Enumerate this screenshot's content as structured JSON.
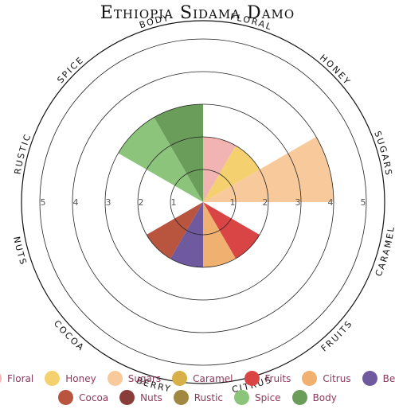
{
  "chart_data": {
    "type": "polar-area",
    "title": "Ethiopia Sidama Damo",
    "rlim": [
      0,
      5
    ],
    "rings": [
      1,
      2,
      3,
      4,
      5
    ],
    "tick_labels": [
      "1",
      "2",
      "3",
      "4",
      "5"
    ],
    "categories": [
      "Floral",
      "Honey",
      "Sugars",
      "Caramel",
      "Fruits",
      "Citrus",
      "Berry",
      "Cocoa",
      "Nuts",
      "Rustic",
      "Spice",
      "Body"
    ],
    "axis_labels": [
      "FLORAL",
      "HONEY",
      "SUGARS",
      "CARAMEL",
      "FRUITS",
      "CITRUS",
      "BERRY",
      "COCOA",
      "NUTS",
      "RUSTIC",
      "SPICE",
      "BODY"
    ],
    "values": [
      2.0,
      2.0,
      4.0,
      0.0,
      2.0,
      2.0,
      2.0,
      2.0,
      0.0,
      0.0,
      3.0,
      3.0
    ],
    "colors": [
      "#f2b3b3",
      "#f4d06f",
      "#f8c99a",
      "#d8b04a",
      "#d94545",
      "#f0b070",
      "#6f5aa0",
      "#b9543f",
      "#8a3c38",
      "#a08840",
      "#8cc47c",
      "#6a9c5a"
    ],
    "legend": [
      "Floral",
      "Honey",
      "Sugars",
      "Caramel",
      "Fruits",
      "Citrus",
      "Berry",
      "Cocoa",
      "Nuts",
      "Rustic",
      "Spice",
      "Body"
    ],
    "grid": true,
    "legend_position": "bottom"
  }
}
